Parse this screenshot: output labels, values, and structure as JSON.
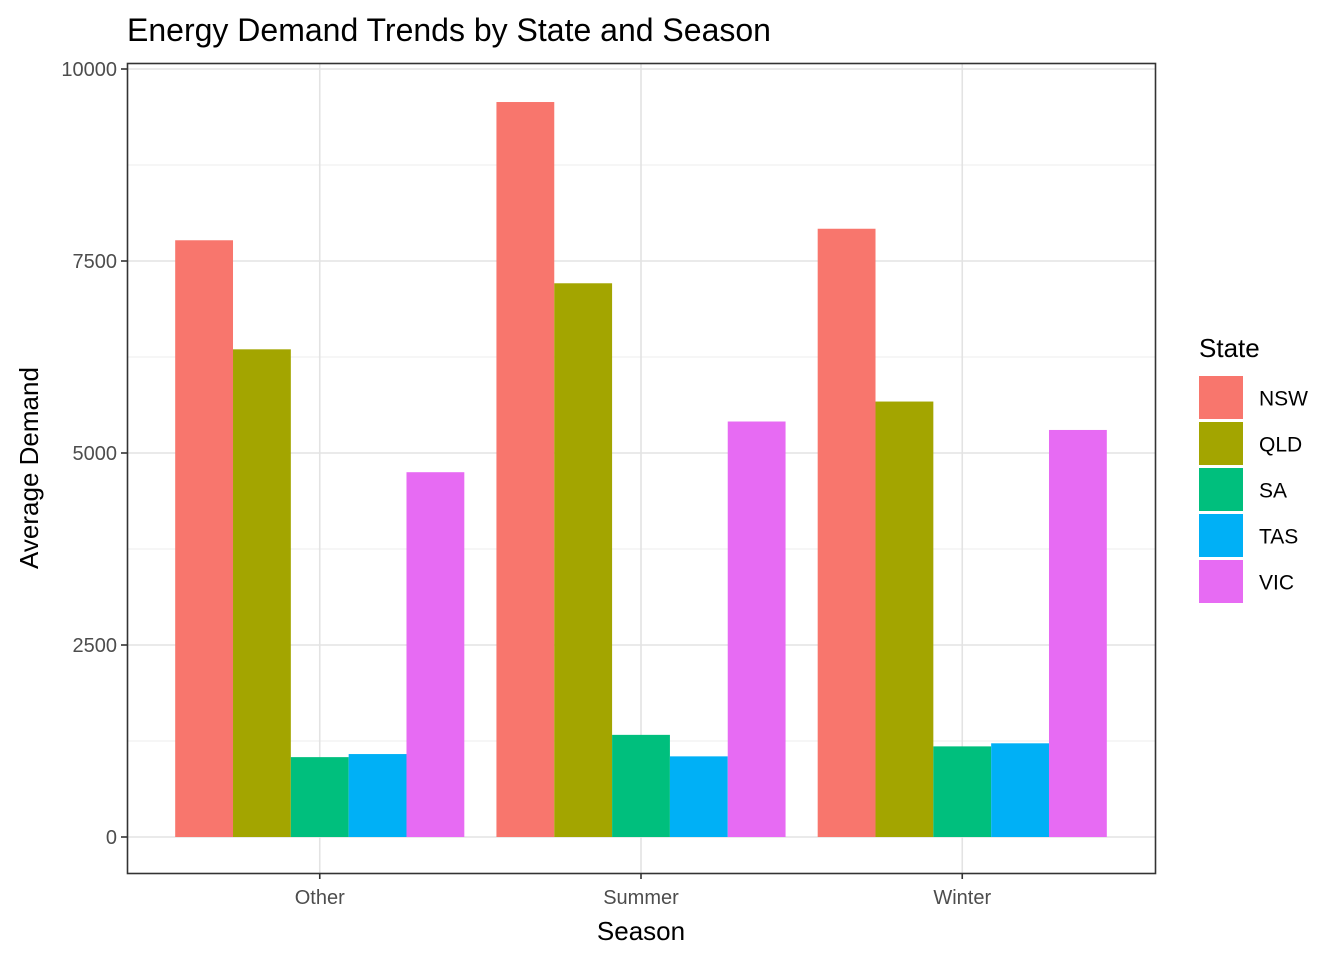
{
  "chart_data": {
    "type": "bar",
    "title": "Energy Demand Trends by State and Season",
    "xlabel": "Season",
    "ylabel": "Average Demand",
    "categories": [
      "Other",
      "Summer",
      "Winter"
    ],
    "series": [
      {
        "name": "NSW",
        "color": "#F8766D",
        "values": [
          7770,
          9570,
          7920
        ]
      },
      {
        "name": "QLD",
        "color": "#A3A500",
        "values": [
          6350,
          7210,
          5670
        ]
      },
      {
        "name": "SA",
        "color": "#00BF7D",
        "values": [
          1040,
          1330,
          1180
        ]
      },
      {
        "name": "TAS",
        "color": "#00B0F6",
        "values": [
          1080,
          1050,
          1220
        ]
      },
      {
        "name": "VIC",
        "color": "#E76BF3",
        "values": [
          4750,
          5410,
          5300
        ]
      }
    ],
    "ylim": [
      -900,
      10100
    ],
    "yticks": [
      0,
      2500,
      5000,
      7500,
      10000
    ],
    "ytick_labels": [
      "0",
      "2500",
      "5000",
      "7500",
      "10000"
    ],
    "legend": {
      "title": "State",
      "placement": "right"
    },
    "grid": true
  }
}
